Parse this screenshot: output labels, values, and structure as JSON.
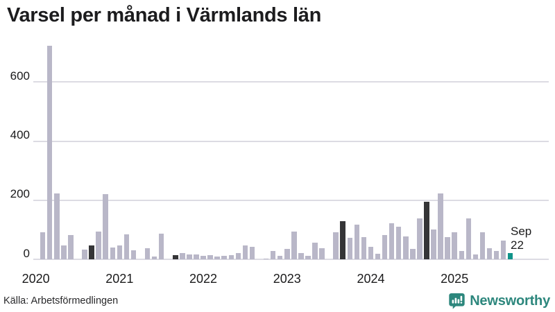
{
  "chart_data": {
    "type": "bar",
    "title": "Varsel per månad i Värmlands län",
    "x_start": "2020-01",
    "x_end": "2025-09",
    "categories_years": [
      "2020",
      "2021",
      "2022",
      "2023",
      "2024",
      "2025"
    ],
    "series_values_by_year": {
      "2020": [
        0,
        92,
        722,
        224,
        48,
        81,
        0,
        34,
        46,
        95,
        220,
        40
      ],
      "2021": [
        48,
        84,
        30,
        0,
        38,
        10,
        86,
        0,
        13,
        22,
        17,
        17
      ],
      "2022": [
        12,
        13,
        9,
        12,
        13,
        20,
        47,
        42,
        0,
        3,
        29,
        11
      ],
      "2023": [
        35,
        94,
        21,
        11,
        56,
        38,
        0,
        91,
        128,
        73,
        117,
        76
      ],
      "2024": [
        42,
        18,
        82,
        123,
        111,
        78,
        35,
        139,
        196,
        100,
        222,
        76
      ],
      "2025": [
        92,
        29,
        138,
        17,
        92,
        37,
        27,
        64,
        22
      ]
    },
    "yticks": [
      0,
      200,
      400,
      600
    ],
    "ylim": [
      0,
      740
    ],
    "grid": "horizontal-only",
    "legend": "none",
    "highlight": {
      "dark_months": [
        "2020-09",
        "2021-09",
        "2023-09",
        "2024-09"
      ],
      "teal_month": "2025-09"
    },
    "annotation": {
      "month_label": "Sep",
      "value_label": "22"
    },
    "colors": {
      "bar_default": "#b9b7c8",
      "bar_highlight_dark": "#353537",
      "bar_highlight_teal": "#10938a",
      "gridline": "#dcdbe3",
      "axis_text": "#1a1a1b"
    }
  },
  "footer": {
    "source": "Källa: Arbetsförmedlingen",
    "brand_name": "Newsworthy",
    "brand_color": "#2d877d"
  }
}
